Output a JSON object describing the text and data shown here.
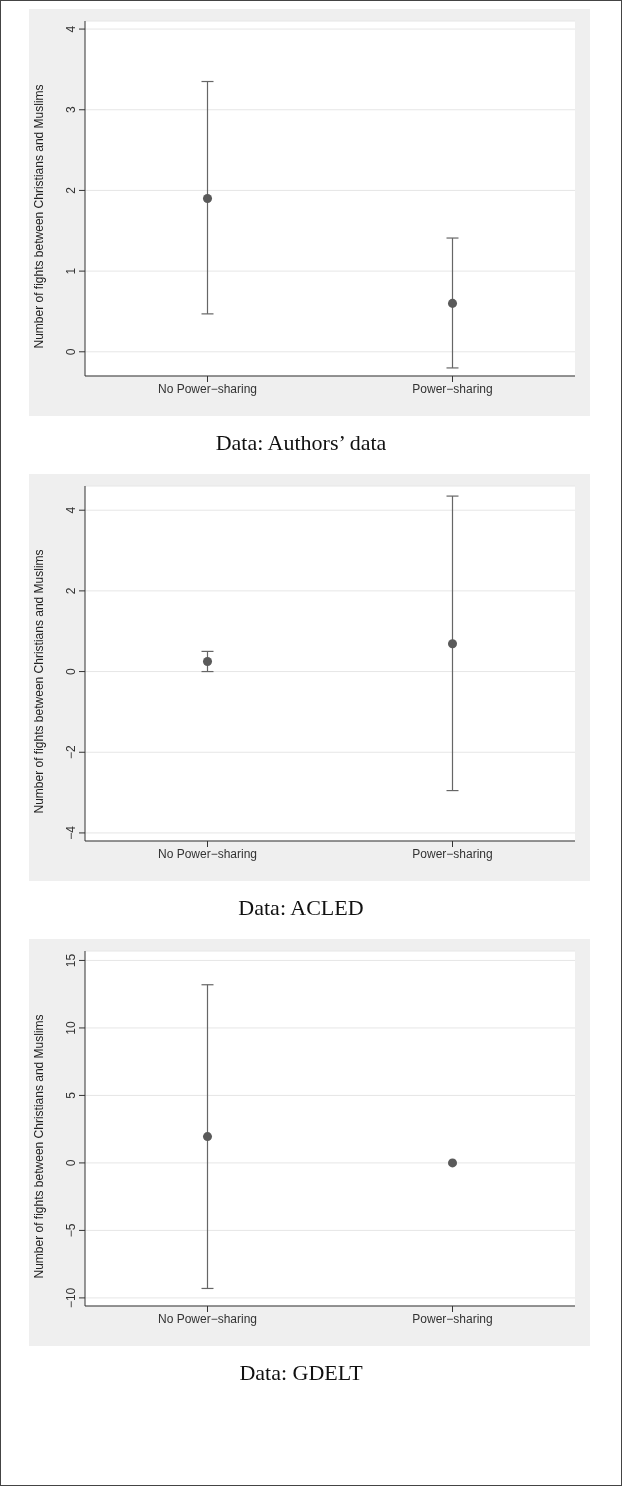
{
  "chart_data": [
    {
      "type": "scatter",
      "categories": [
        "No Power−sharing",
        "Power−sharing"
      ],
      "ylabel": "Number of fights between Christians and Muslims",
      "series": [
        {
          "color": "#5a5a5a",
          "values": [
            1.9,
            0.6
          ],
          "errors": [
            [
              0.47,
              3.35
            ],
            [
              -0.2,
              1.41
            ]
          ]
        }
      ],
      "ylim": [
        -0.3,
        4.1
      ],
      "yticks": [
        0,
        1,
        2,
        3,
        4
      ],
      "grid": "y",
      "legend": false,
      "marker": "circle",
      "annotations": [
        "Data: Authors’ data"
      ]
    },
    {
      "type": "scatter",
      "categories": [
        "No Power−sharing",
        "Power−sharing"
      ],
      "ylabel": "Number of fights between Christians and Muslims",
      "series": [
        {
          "color": "#5a5a5a",
          "values": [
            0.25,
            0.69
          ],
          "errors": [
            [
              0,
              0.5
            ],
            [
              -2.95,
              4.35
            ]
          ]
        }
      ],
      "ylim": [
        -4.2,
        4.6
      ],
      "yticks": [
        -4,
        -2,
        0,
        2,
        4
      ],
      "grid": "y",
      "legend": false,
      "marker": "circle",
      "annotations": [
        "Data: ACLED"
      ]
    },
    {
      "type": "scatter",
      "categories": [
        "No Power−sharing",
        "Power−sharing"
      ],
      "ylabel": "Number of fights between Christians and Muslims",
      "series": [
        {
          "color": "#5a5a5a",
          "values": [
            1.95,
            0
          ],
          "errors": [
            [
              -9.3,
              13.2
            ],
            null
          ]
        }
      ],
      "ylim": [
        -10.6,
        15.7
      ],
      "yticks": [
        -10,
        -5,
        0,
        5,
        10,
        15
      ],
      "grid": "y",
      "legend": false,
      "marker": "circle",
      "annotations": [
        "Data: GDELT"
      ]
    }
  ]
}
